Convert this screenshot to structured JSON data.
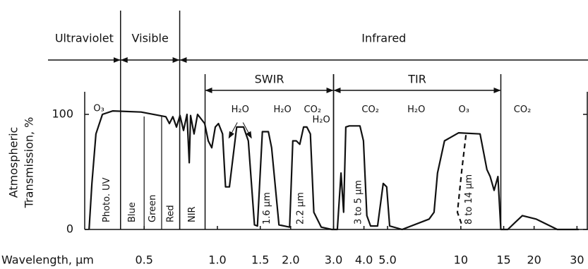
{
  "chart_data": {
    "type": "line",
    "xlabel": "Wavelength, µm",
    "ylabel": [
      "Atmospheric",
      "Transmission, %"
    ],
    "xlog": true,
    "xlim": [
      0.285,
      33.3
    ],
    "ylim": [
      0,
      100
    ],
    "yticks": [
      0,
      100
    ],
    "xticks": [
      0.5,
      {
        "value": 1,
        "label": "1.0"
      },
      1.5,
      {
        "value": 2,
        "label": "2.0"
      },
      {
        "value": 3,
        "label": "3.0"
      },
      {
        "value": 4,
        "label": "4.0"
      },
      {
        "value": 5,
        "label": "5.0"
      },
      10,
      15,
      20,
      30
    ],
    "series": [
      {
        "color": "#111111",
        "dashed": false,
        "x": [
          0.297,
          0.305,
          0.317,
          0.337,
          0.372,
          0.486,
          0.614,
          0.635,
          0.656,
          0.679,
          0.702,
          0.726,
          0.75,
          0.766,
          0.776,
          0.802,
          0.829,
          0.887,
          0.917,
          0.948,
          0.98,
          1.01,
          1.05,
          1.08,
          1.12,
          1.2,
          1.28,
          1.34,
          1.42,
          1.46,
          1.53,
          1.62,
          1.67,
          1.79,
          1.98,
          2.04,
          2.11,
          2.18,
          2.26,
          2.33,
          2.41,
          2.49,
          2.67,
          2.95,
          3.11,
          3.22,
          3.3,
          3.37,
          3.48,
          3.85,
          3.98,
          4.11,
          4.26,
          4.55,
          4.8,
          4.96,
          5.1,
          5.74,
          7.41,
          7.76,
          8.02,
          8.57,
          9.8,
          12.0,
          12.8,
          13.2,
          13.7,
          14.2,
          14.6,
          15.6,
          16.7,
          17.9,
          20.4,
          24.9,
          30.5
        ],
        "values": [
          0,
          40,
          83,
          100,
          103,
          102,
          98,
          92,
          98,
          89,
          99,
          86,
          100,
          58,
          99,
          83,
          100,
          92,
          77,
          71,
          89,
          92,
          83,
          37,
          37,
          89,
          89,
          77,
          4,
          3,
          85,
          85,
          71,
          4,
          2,
          77,
          77,
          74,
          89,
          89,
          83,
          15,
          2,
          0,
          0,
          49,
          15,
          89,
          90,
          90,
          77,
          12,
          3,
          3,
          40,
          37,
          3,
          0,
          9,
          15,
          49,
          77,
          84,
          83,
          52,
          46,
          34,
          46,
          0,
          0,
          6,
          12,
          9,
          0,
          0
        ]
      },
      {
        "color": "#111111",
        "dashed": true,
        "x": [
          10.5,
          10.1,
          9.68,
          10.1
        ],
        "values": [
          82,
          52,
          15,
          4
        ]
      }
    ],
    "regions": [
      {
        "label": "Ultraviolet",
        "range": [
          0.285,
          0.4
        ]
      },
      {
        "label": "Visible",
        "range": [
          0.4,
          0.7
        ]
      },
      {
        "label": "Infrared",
        "range": [
          0.7,
          33.3
        ]
      }
    ],
    "subregions": [
      {
        "label": "SWIR",
        "range": [
          0.89,
          3.0
        ]
      },
      {
        "label": "TIR",
        "range": [
          3.0,
          14.6
        ]
      }
    ],
    "bands": [
      {
        "label": "Photo. UV",
        "range": [
          0.285,
          0.4
        ]
      },
      {
        "label": "Blue",
        "range": [
          0.4,
          0.5
        ]
      },
      {
        "label": "Green",
        "range": [
          0.5,
          0.59
        ]
      },
      {
        "label": "Red",
        "range": [
          0.59,
          0.7
        ]
      },
      {
        "label": "NIR",
        "range": [
          0.7,
          0.89
        ]
      }
    ],
    "window_labels": [
      {
        "label": "1.6 µm",
        "x": 1.6
      },
      {
        "label": "2.2 µm",
        "x": 2.2
      },
      {
        "label": "3 to 5 µm",
        "x": 3.8
      },
      {
        "label": "8 to 14 µm",
        "x": 10.8
      }
    ],
    "annotations": [
      {
        "text": "O₃",
        "x": 0.326,
        "y": 105
      },
      {
        "text": "H₂O",
        "x": 1.24,
        "y": 104
      },
      {
        "text": "H₂O",
        "x": 1.85,
        "y": 104
      },
      {
        "text": "CO₂",
        "x": 2.46,
        "y": 104
      },
      {
        "text": "H₂O",
        "x": 2.67,
        "y": 95
      },
      {
        "text": "CO₂",
        "x": 4.25,
        "y": 104
      },
      {
        "text": "H₂O",
        "x": 6.56,
        "y": 104
      },
      {
        "text": "O₃",
        "x": 10.3,
        "y": 104
      },
      {
        "text": "CO₂",
        "x": 17.9,
        "y": 104
      }
    ]
  }
}
